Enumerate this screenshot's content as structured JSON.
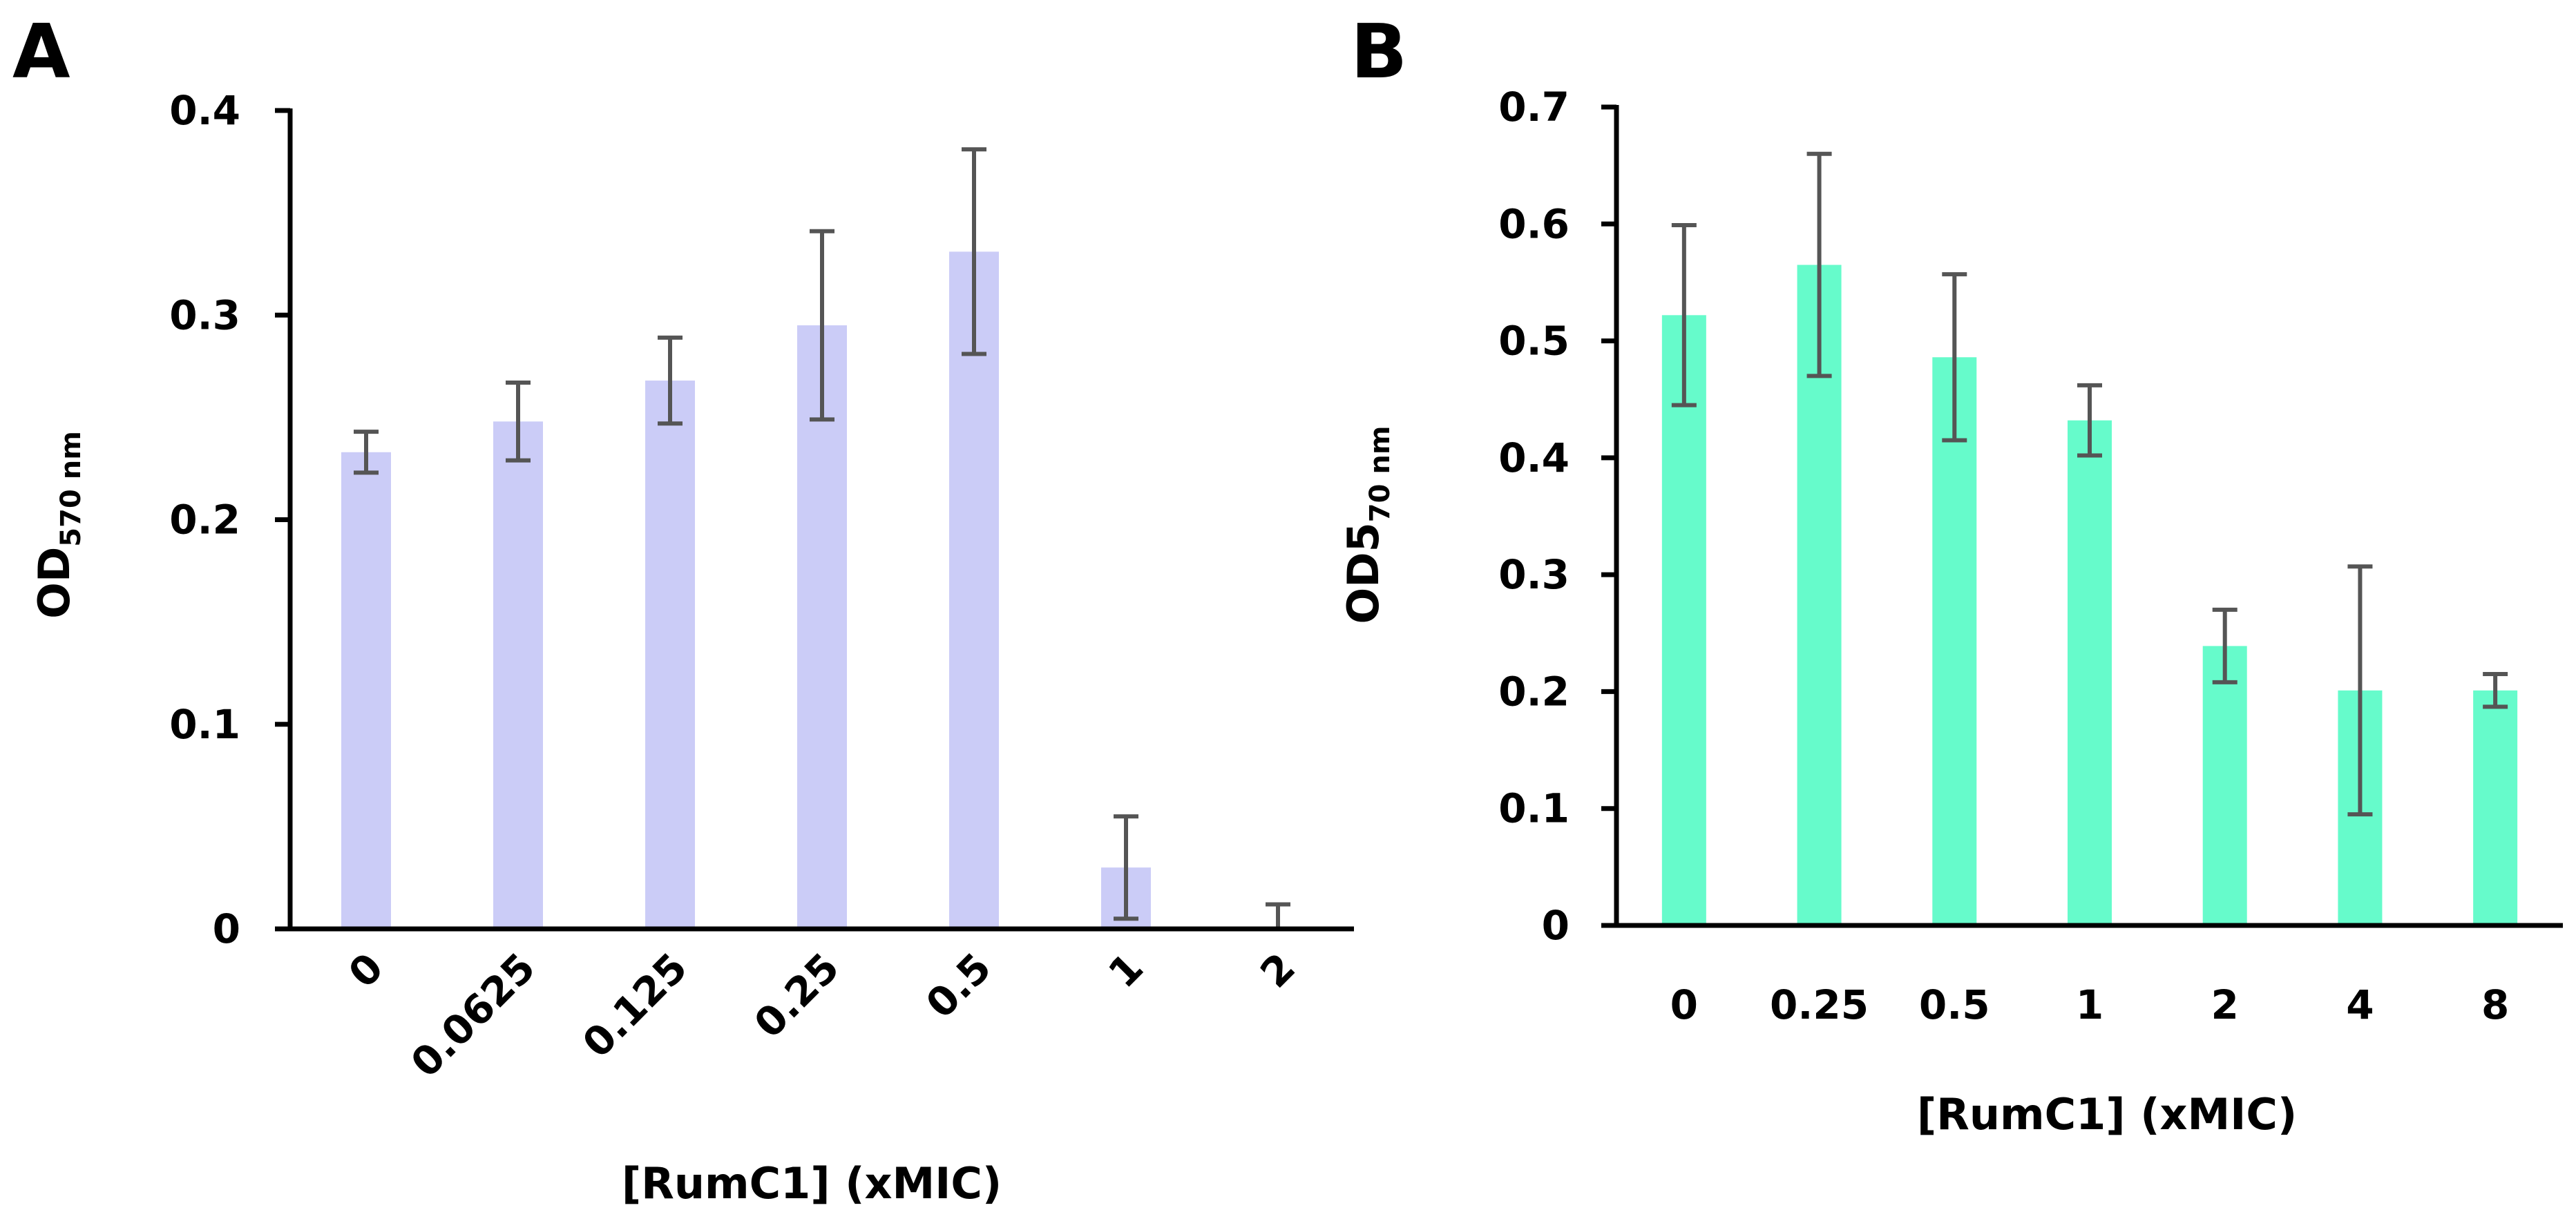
{
  "figure": {
    "panels": [
      "A",
      "B"
    ]
  },
  "chart_data": [
    {
      "panel": "A",
      "type": "bar",
      "title": "",
      "xlabel": "[RumC1] (xMIC)",
      "ylabel_main": "OD",
      "ylabel_sub": "570 nm",
      "categories": [
        "0",
        "0.0625",
        "0.125",
        "0.25",
        "0.5",
        "1",
        "2"
      ],
      "values": [
        0.233,
        0.248,
        0.268,
        0.295,
        0.331,
        0.03,
        0.0
      ],
      "errors": [
        0.01,
        0.019,
        0.021,
        0.046,
        0.05,
        0.025,
        0.012
      ],
      "ylim": [
        0,
        0.4
      ],
      "yticks": [
        0,
        0.1,
        0.2,
        0.3,
        0.4
      ],
      "ytick_labels": [
        "0",
        "0.1",
        "0.2",
        "0.3",
        "0.4"
      ],
      "color": "#CBCCF7",
      "error_color": "#555555",
      "grid": false,
      "x_tick_rotation": "rotated -45°"
    },
    {
      "panel": "B",
      "type": "bar",
      "title": "",
      "xlabel": "[RumC1] (xMIC)",
      "ylabel_main": "OD5",
      "ylabel_sub": "70 nm",
      "categories": [
        "0",
        "0.25",
        "0.5",
        "1",
        "2",
        "4",
        "8"
      ],
      "values": [
        0.522,
        0.565,
        0.486,
        0.432,
        0.239,
        0.201,
        0.201
      ],
      "errors": [
        0.077,
        0.095,
        0.071,
        0.03,
        0.031,
        0.106,
        0.014
      ],
      "ylim": [
        0,
        0.7
      ],
      "yticks": [
        0,
        0.1,
        0.2,
        0.3,
        0.4,
        0.5,
        0.6,
        0.7
      ],
      "ytick_labels": [
        "0",
        "0.1",
        "0.2",
        "0.3",
        "0.4",
        "0.5",
        "0.6",
        "0.7"
      ],
      "color": "#66FBCB",
      "error_color": "#555555",
      "grid": false,
      "x_tick_rotation": "horizontal"
    }
  ]
}
